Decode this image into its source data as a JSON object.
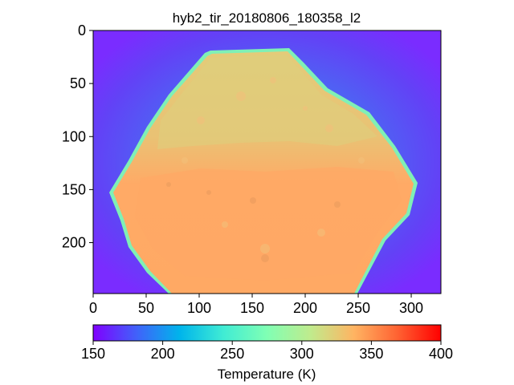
{
  "figure": {
    "title": "hyb2_tir_20180806_180358_l2"
  },
  "image_axes": {
    "x_ticks": [
      "0",
      "50",
      "100",
      "150",
      "200",
      "250",
      "300"
    ],
    "y_ticks": [
      "0",
      "50",
      "100",
      "150",
      "200"
    ],
    "x_range": [
      0,
      328
    ],
    "y_range": [
      0,
      248
    ]
  },
  "colorbar": {
    "label": "Temperature (K)",
    "ticks": [
      "150",
      "200",
      "250",
      "300",
      "350",
      "400"
    ],
    "range": [
      150,
      400
    ],
    "colormap": "rainbow"
  },
  "colors": {
    "cold_background": "#7a2cff",
    "halo": "#4d6ef6",
    "rim": "#7ef2b8",
    "surface_warm": "#ffaa66",
    "surface_light": "#d8d27e",
    "hot": "#ff1800"
  }
}
